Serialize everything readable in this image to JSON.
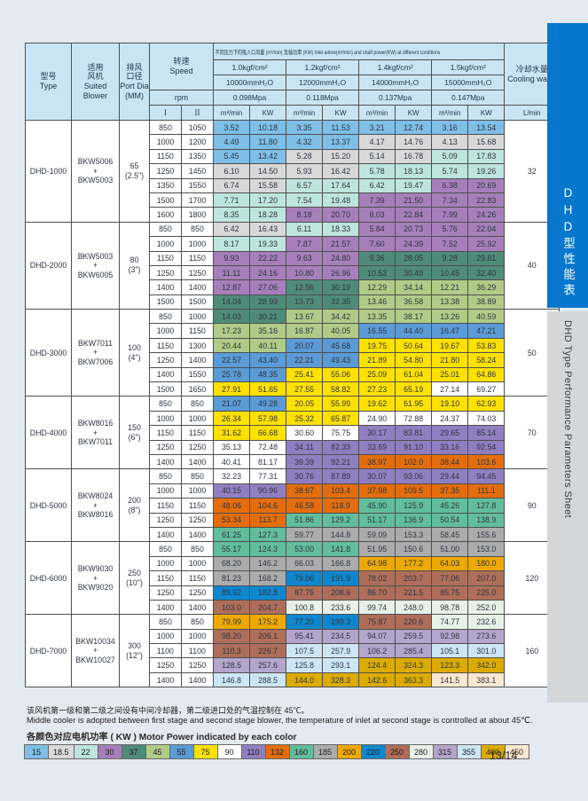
{
  "page": {
    "page_number": "13/14",
    "background": "#E4EAF1"
  },
  "sidebar": {
    "blue_color": "#0677CD",
    "gray_color": "#D4D6D8",
    "title_cn": "DHD型性能表",
    "title_en": "DHD Type Performance Parameters Sheet"
  },
  "notes": {
    "cn": "该风机第一级和第二级之间设有中间冷却器，第二级进口处的气温控制在 45℃。",
    "en": "Middle cooler is adopted between first stage and second stage blower, the temperature of inlet at second stage is controlled at about 45℃."
  },
  "legend": {
    "title": "各颜色对应电机功率 ( KW ) Motor Power indicated by each color",
    "values": [
      "15",
      "18.5",
      "22",
      "30",
      "37",
      "45",
      "55",
      "75",
      "90",
      "110",
      "132",
      "160",
      "185",
      "200",
      "220",
      "250",
      "280",
      "315",
      "355",
      "400",
      "450"
    ]
  },
  "power_colors": {
    "15": "#7EBEE7",
    "18.5": "#D8D8D8",
    "22": "#BEE4DE",
    "30": "#A67FBA",
    "37": "#4F8B79",
    "45": "#B0CB87",
    "55": "#5B9BD5",
    "75": "#FFE100",
    "90": "#FFFFFF",
    "110": "#8F7FC0",
    "132": "#E36D0C",
    "160": "#61BD9C",
    "185": "#ABABAB",
    "200": "#EDA900",
    "220": "#0F87CE",
    "250": "#AE6E5A",
    "280": "#E7F1E8",
    "315": "#B4A5CC",
    "355": "#CDE6F6",
    "400": "#DCAB00",
    "450": "#F8E8D2"
  },
  "table": {
    "header": {
      "model": "型号\nType",
      "blower": "适用\n风机\nSuited\nBlower",
      "port": "排风\n口径\nPort Dia\n(MM)",
      "speed": "转速\nSpeed",
      "rpm": "rpm",
      "speed_cols": [
        "I",
        "II"
      ],
      "banner": "不同压力下的吸入口风量 (m³/min) 及轴功率 (KW) Inlet airlow(m³/min) and shaft power(KW) at different conditions",
      "pressures": [
        {
          "kgf": "1.0kgf/cm²",
          "head": "10000mmH₂O",
          "mpa": "0.098Mpa"
        },
        {
          "kgf": "1.2kgf/cm²",
          "head": "12000mmH₂O",
          "mpa": "0.118Mpa"
        },
        {
          "kgf": "1.4kgf/cm²",
          "head": "14000mmH₂O",
          "mpa": "0.137Mpa"
        },
        {
          "kgf": "1.5kgf/cm²",
          "head": "15000mmH₂O",
          "mpa": "0.147Mpa"
        }
      ],
      "unit_flow": "m³/min",
      "unit_power": "KW",
      "cooling": "冷却水量\nCooling water",
      "cooling_unit": "L/min"
    },
    "groups": [
      {
        "model": "DHD-1000",
        "blower": "BKW5006\n+\nBKW5003",
        "port": "65\n(2.5\")",
        "cooling": "32",
        "rows": [
          {
            "s1": "850",
            "s2": "1050",
            "v": [
              "3.52",
              "10.18",
              "3.35",
              "11.53",
              "3.21",
              "12.74",
              "3.16",
              "13.54"
            ],
            "p": [
              "15",
              "15",
              "15",
              "15"
            ]
          },
          {
            "s1": "1000",
            "s2": "1200",
            "v": [
              "4.49",
              "11.80",
              "4.32",
              "13.37",
              "4.17",
              "14.76",
              "4.13",
              "15.68"
            ],
            "p": [
              "15",
              "15",
              "18.5",
              "18.5"
            ]
          },
          {
            "s1": "1150",
            "s2": "1350",
            "v": [
              "5.45",
              "13.42",
              "5.28",
              "15.20",
              "5.14",
              "16.78",
              "5.09",
              "17.83"
            ],
            "p": [
              "15",
              "18.5",
              "18.5",
              "22"
            ]
          },
          {
            "s1": "1250",
            "s2": "1450",
            "v": [
              "6.10",
              "14.50",
              "5.93",
              "16.42",
              "5.78",
              "18.13",
              "5.74",
              "19.26"
            ],
            "p": [
              "18.5",
              "18.5",
              "22",
              "22"
            ]
          },
          {
            "s1": "1350",
            "s2": "1550",
            "v": [
              "6.74",
              "15.58",
              "6.57",
              "17.64",
              "6.42",
              "19.47",
              "6.38",
              "20.69"
            ],
            "p": [
              "18.5",
              "22",
              "22",
              "30"
            ]
          },
          {
            "s1": "1500",
            "s2": "1700",
            "v": [
              "7.71",
              "17.20",
              "7.54",
              "19.48",
              "7.39",
              "21.50",
              "7.34",
              "22.83"
            ],
            "p": [
              "22",
              "22",
              "30",
              "30"
            ]
          },
          {
            "s1": "1600",
            "s2": "1800",
            "v": [
              "8.35",
              "18.28",
              "8.18",
              "20.70",
              "8.03",
              "22.84",
              "7.99",
              "24.26"
            ],
            "p": [
              "22",
              "30",
              "30",
              "30"
            ]
          }
        ]
      },
      {
        "model": "DHD-2000",
        "blower": "BKW5003\n+\nBKW6005",
        "port": "80\n(3\")",
        "cooling": "40",
        "rows": [
          {
            "s1": "850",
            "s2": "850",
            "v": [
              "6.42",
              "16.43",
              "6.11",
              "18.33",
              "5.84",
              "20.73",
              "5.76",
              "22.04"
            ],
            "p": [
              "18.5",
              "22",
              "30",
              "30"
            ]
          },
          {
            "s1": "1000",
            "s2": "1000",
            "v": [
              "8.17",
              "19.33",
              "7.87",
              "21.57",
              "7.60",
              "24.39",
              "7.52",
              "25.92"
            ],
            "p": [
              "22",
              "30",
              "30",
              "30"
            ]
          },
          {
            "s1": "1150",
            "s2": "1150",
            "v": [
              "9.93",
              "22.22",
              "9.63",
              "24.80",
              "9.36",
              "28.05",
              "9.28",
              "29.81"
            ],
            "p": [
              "30",
              "30",
              "37",
              "37"
            ]
          },
          {
            "s1": "1250",
            "s2": "1250",
            "v": [
              "11.11",
              "24.16",
              "10.80",
              "26.96",
              "10.53",
              "30.49",
              "10.45",
              "32.40"
            ],
            "p": [
              "30",
              "30",
              "37",
              "37"
            ]
          },
          {
            "s1": "1400",
            "s2": "1400",
            "v": [
              "12.87",
              "27.06",
              "12.56",
              "30.19",
              "12.29",
              "34.14",
              "12.21",
              "36.29"
            ],
            "p": [
              "30",
              "37",
              "45",
              "45"
            ]
          },
          {
            "s1": "1500",
            "s2": "1500",
            "v": [
              "14.04",
              "28.99",
              "13.73",
              "32.35",
              "13.46",
              "36.58",
              "13.38",
              "38.89"
            ],
            "p": [
              "37",
              "37",
              "45",
              "45"
            ]
          }
        ]
      },
      {
        "model": "DHD-3000",
        "blower": "BKW7011\n+\nBKW7006",
        "port": "100\n(4\")",
        "cooling": "50",
        "rows": [
          {
            "s1": "850",
            "s2": "1000",
            "v": [
              "14.03",
              "30.21",
              "13.67",
              "34.42",
              "13.35",
              "38.17",
              "13.26",
              "40.59"
            ],
            "p": [
              "37",
              "45",
              "45",
              "45"
            ]
          },
          {
            "s1": "1000",
            "s2": "1150",
            "v": [
              "17.23",
              "35.16",
              "16.87",
              "40.05",
              "16.55",
              "44.40",
              "16.47",
              "47.21"
            ],
            "p": [
              "45",
              "45",
              "55",
              "55"
            ]
          },
          {
            "s1": "1150",
            "s2": "1300",
            "v": [
              "20.44",
              "40.11",
              "20.07",
              "45.68",
              "19.75",
              "50.64",
              "19.67",
              "53.83"
            ],
            "p": [
              "45",
              "55",
              "75",
              "75"
            ]
          },
          {
            "s1": "1250",
            "s2": "1400",
            "v": [
              "22.57",
              "43.40",
              "22.21",
              "49.43",
              "21.89",
              "54.80",
              "21.80",
              "58.24"
            ],
            "p": [
              "55",
              "55",
              "75",
              "75"
            ]
          },
          {
            "s1": "1400",
            "s2": "1550",
            "v": [
              "25.78",
              "48.35",
              "25.41",
              "55.06",
              "25.09",
              "61.04",
              "25.01",
              "64.86"
            ],
            "p": [
              "55",
              "75",
              "75",
              "75"
            ]
          },
          {
            "s1": "1500",
            "s2": "1650",
            "v": [
              "27.91",
              "51.65",
              "27.55",
              "58.82",
              "27.23",
              "65.19",
              "27.14",
              "69.27"
            ],
            "p": [
              "75",
              "75",
              "75",
              "90"
            ]
          }
        ]
      },
      {
        "model": "DHD-4000",
        "blower": "BKW8016\n+\nBKW7011",
        "port": "150\n(6\")",
        "cooling": "70",
        "rows": [
          {
            "s1": "850",
            "s2": "850",
            "v": [
              "21.07",
              "49.28",
              "20.05",
              "55.99",
              "19.62",
              "61.95",
              "19.10",
              "62.93"
            ],
            "p": [
              "55",
              "75",
              "75",
              "75"
            ]
          },
          {
            "s1": "1000",
            "s2": "1000",
            "v": [
              "26.34",
              "57.98",
              "25.32",
              "65.87",
              "24.90",
              "72.88",
              "24.37",
              "74.03"
            ],
            "p": [
              "75",
              "75",
              "90",
              "90"
            ]
          },
          {
            "s1": "1150",
            "s2": "1150",
            "v": [
              "31.62",
              "66.68",
              "30.60",
              "75.75",
              "30.17",
              "83.81",
              "29.65",
              "85.14"
            ],
            "p": [
              "75",
              "90",
              "110",
              "110"
            ]
          },
          {
            "s1": "1250",
            "s2": "1250",
            "v": [
              "35.13",
              "72.48",
              "34.11",
              "82.33",
              "33.69",
              "91.10",
              "33.16",
              "92.54"
            ],
            "p": [
              "90",
              "110",
              "110",
              "110"
            ]
          },
          {
            "s1": "1400",
            "s2": "1400",
            "v": [
              "40.41",
              "81.17",
              "39.39",
              "92.21",
              "38.97",
              "102.0",
              "38.44",
              "103.6"
            ],
            "p": [
              "90",
              "110",
              "132",
              "132"
            ]
          }
        ]
      },
      {
        "model": "DHD-5000",
        "blower": "BKW8024\n+\nBKW8016",
        "port": "200\n(8\")",
        "cooling": "90",
        "rows": [
          {
            "s1": "850",
            "s2": "850",
            "v": [
              "32.23",
              "77.31",
              "30.76",
              "87.89",
              "30.07",
              "93.06",
              "29.44",
              "94.45"
            ],
            "p": [
              "90",
              "110",
              "110",
              "110"
            ]
          },
          {
            "s1": "1000",
            "s2": "1000",
            "v": [
              "40.15",
              "90.96",
              "38.67",
              "103.4",
              "37.98",
              "109.5",
              "37.35",
              "111.1"
            ],
            "p": [
              "110",
              "132",
              "132",
              "132"
            ]
          },
          {
            "s1": "1150",
            "s2": "1150",
            "v": [
              "48.06",
              "104.6",
              "46.58",
              "118.9",
              "45.90",
              "125.9",
              "45.26",
              "127.8"
            ],
            "p": [
              "132",
              "132",
              "160",
              "160"
            ]
          },
          {
            "s1": "1250",
            "s2": "1250",
            "v": [
              "53.34",
              "113.7",
              "51.86",
              "129.2",
              "51.17",
              "136.9",
              "50.54",
              "138.9"
            ],
            "p": [
              "132",
              "160",
              "160",
              "160"
            ]
          },
          {
            "s1": "1400",
            "s2": "1400",
            "v": [
              "61.25",
              "127.3",
              "59.77",
              "144.8",
              "59.09",
              "153.3",
              "58.45",
              "155.6"
            ],
            "p": [
              "160",
              "185",
              "185",
              "185"
            ]
          }
        ]
      },
      {
        "model": "DHD-6000",
        "blower": "BKW9030\n+\nBKW9020",
        "port": "250\n(10\")",
        "cooling": "120",
        "rows": [
          {
            "s1": "850",
            "s2": "850",
            "v": [
              "55.17",
              "124.3",
              "53.00",
              "141.8",
              "51.95",
              "150.6",
              "51.00",
              "153.0"
            ],
            "p": [
              "160",
              "160",
              "185",
              "185"
            ]
          },
          {
            "s1": "1000",
            "s2": "1000",
            "v": [
              "68.20",
              "146.2",
              "66.03",
              "166.8",
              "64.98",
              "177.2",
              "64.03",
              "180.0"
            ],
            "p": [
              "185",
              "185",
              "200",
              "200"
            ]
          },
          {
            "s1": "1150",
            "s2": "1150",
            "v": [
              "81.23",
              "168.2",
              "79.06",
              "191.9",
              "78.02",
              "203.7",
              "77.06",
              "207.0"
            ],
            "p": [
              "185",
              "220",
              "250",
              "250"
            ]
          },
          {
            "s1": "1250",
            "s2": "1250",
            "v": [
              "89.92",
              "182.8",
              "87.75",
              "208.6",
              "86.70",
              "221.5",
              "85.75",
              "225.0"
            ],
            "p": [
              "220",
              "250",
              "250",
              "250"
            ]
          },
          {
            "s1": "1400",
            "s2": "1400",
            "v": [
              "103.0",
              "204.7",
              "100.8",
              "233.6",
              "99.74",
              "248.0",
              "98.78",
              "252.0"
            ],
            "p": [
              "250",
              "280",
              "280",
              "280"
            ]
          }
        ]
      },
      {
        "model": "DHD-7000",
        "blower": "BKW10034\n+\nBKW10027",
        "port": "300\n(12\")",
        "cooling": "160",
        "rows": [
          {
            "s1": "850",
            "s2": "850",
            "v": [
              "79.99",
              "175.2",
              "77.20",
              "199.3",
              "75.87",
              "220.6",
              "74.77",
              "232.6"
            ],
            "p": [
              "200",
              "220",
              "250",
              "280"
            ]
          },
          {
            "s1": "1000",
            "s2": "1000",
            "v": [
              "98.20",
              "206.1",
              "95.41",
              "234.5",
              "94.07",
              "259.5",
              "92.98",
              "273.6"
            ],
            "p": [
              "250",
              "315",
              "315",
              "315"
            ]
          },
          {
            "s1": "1100",
            "s2": "1100",
            "v": [
              "110.3",
              "226.7",
              "107.5",
              "257.9",
              "106.2",
              "285.4",
              "105.1",
              "301.0"
            ],
            "p": [
              "250",
              "355",
              "315",
              "355"
            ]
          },
          {
            "s1": "1250",
            "s2": "1250",
            "v": [
              "128.5",
              "257.6",
              "125.8",
              "293.1",
              "124.4",
              "324.3",
              "123.3",
              "342.0"
            ],
            "p": [
              "315",
              "355",
              "400",
              "400"
            ]
          },
          {
            "s1": "1400",
            "s2": "1400",
            "v": [
              "146.8",
              "288.5",
              "144.0",
              "328.3",
              "142.6",
              "363.3",
              "141.5",
              "383.1"
            ],
            "p": [
              "355",
              "400",
              "400",
              "450"
            ]
          }
        ]
      }
    ]
  }
}
